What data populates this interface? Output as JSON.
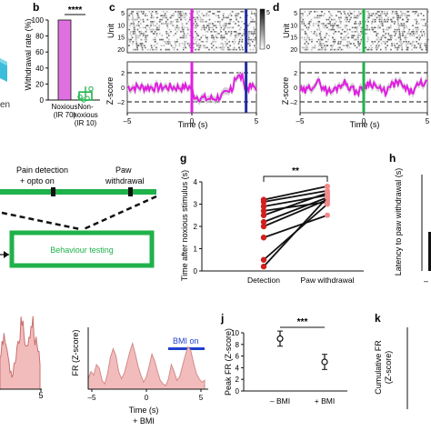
{
  "panels": {
    "b": {
      "letter": "b"
    },
    "c": {
      "letter": "c"
    },
    "d": {
      "letter": "d"
    },
    "g": {
      "letter": "g"
    },
    "h": {
      "letter": "h"
    },
    "j": {
      "letter": "j"
    },
    "k": {
      "letter": "k"
    }
  },
  "fragments": {
    "left_a_text": "en",
    "schematic_label_1a": "Pain detection",
    "schematic_label_1b": "+ opto on",
    "schematic_label_2a": "Paw",
    "schematic_label_2b": "withdrawal",
    "behaviour_box_label": "Behaviour testing",
    "h_ylabel": "Latency to paw withdrawal (s)",
    "h_tick": "–",
    "k_ylabel_1": "Cumulative FR",
    "k_ylabel_2": "(Z-score)",
    "bottom_left_xtick": "5",
    "bmi_panel_bar_label": "BMI on"
  },
  "colors": {
    "magenta": "#e020e0",
    "violet": "#e070e0",
    "green": "#1fb24a",
    "navy": "#1f2fa0",
    "red": "#d21f1f",
    "pink": "#f28a8a",
    "pink_fill": "#f3bcbc",
    "blue": "#2040d0",
    "cyan": "#3bbcd8",
    "gray": "#888888"
  },
  "chart_data": [
    {
      "id": "b",
      "type": "bar",
      "categories": [
        "Noxious (IR 70)",
        "Non-noxious (IR 10)"
      ],
      "values": [
        100,
        10
      ],
      "ylabel": "Withdrawal rate (%)",
      "ylim": [
        0,
        100
      ],
      "yticks": [
        "0",
        "20",
        "40",
        "60",
        "80",
        "100"
      ],
      "significance": "****"
    },
    {
      "id": "c",
      "type": "line",
      "raster_ylabel": "Unit",
      "raster_yticks": [
        "5",
        "10",
        "15",
        "20"
      ],
      "colorbar_ticks": [
        "5",
        "0"
      ],
      "ylabel": "Z-score",
      "yticks": [
        "–2",
        "0",
        "2"
      ],
      "xlabel": "Time (s)",
      "xticks": [
        "–5",
        "0",
        "5"
      ],
      "markers": [
        0,
        4.2
      ]
    },
    {
      "id": "d",
      "type": "line",
      "raster_ylabel": "Unit",
      "raster_yticks": [
        "5",
        "10",
        "15",
        "20"
      ],
      "ylabel": "Z-score",
      "yticks": [
        "–2",
        "0",
        "2"
      ],
      "xlabel": "Time (s)",
      "xticks": [
        "–5",
        "0",
        "5"
      ],
      "markers": [
        0
      ]
    },
    {
      "id": "g",
      "type": "scatter",
      "categories": [
        "Detection",
        "Paw withdrawal"
      ],
      "ylabel": "Time after noxious stimulus (s)",
      "ylim": [
        0,
        4
      ],
      "yticks": [
        "0",
        "1",
        "2",
        "3",
        "4"
      ],
      "significance": "**",
      "pairs": [
        [
          3.2,
          3.8
        ],
        [
          3.1,
          3.6
        ],
        [
          2.9,
          3.4
        ],
        [
          2.7,
          3.1
        ],
        [
          2.5,
          3.5
        ],
        [
          2.2,
          3.3
        ],
        [
          2.0,
          3.2
        ],
        [
          1.5,
          2.5
        ],
        [
          0.5,
          3.0
        ],
        [
          0.2,
          3.3
        ]
      ]
    },
    {
      "id": "bmi",
      "type": "area",
      "ylabel": "FR (Z-score)",
      "xlabel": "Time (s)",
      "xlabel_extra": "+ BMI",
      "xticks": [
        "–5",
        "0",
        "5"
      ],
      "values": [
        0.6,
        1.0,
        0.8,
        1.4,
        1.2,
        0.5,
        0.3,
        0.9,
        1.8,
        2.3,
        1.9,
        1.0,
        0.6,
        0.9,
        1.5,
        2.1,
        2.6,
        2.0,
        1.3,
        0.8,
        0.4,
        0.7,
        1.3,
        2.0,
        1.6,
        1.0,
        0.5,
        0.3,
        0.2,
        0.6,
        1.4,
        1.0,
        0.5,
        0.7,
        1.3,
        1.9,
        2.4,
        2.2,
        1.5,
        0.9,
        0.6,
        0.4,
        0.5
      ]
    },
    {
      "id": "j",
      "type": "scatter",
      "categories": [
        "– BMI",
        "+ BMI"
      ],
      "values": [
        9,
        5
      ],
      "errors": [
        1.3,
        1.3
      ],
      "ylabel": "Peak FR (Z-score)",
      "ylim": [
        0,
        10
      ],
      "yticks": [
        "0",
        "2",
        "4",
        "6",
        "8",
        "10"
      ],
      "significance": "***"
    }
  ]
}
